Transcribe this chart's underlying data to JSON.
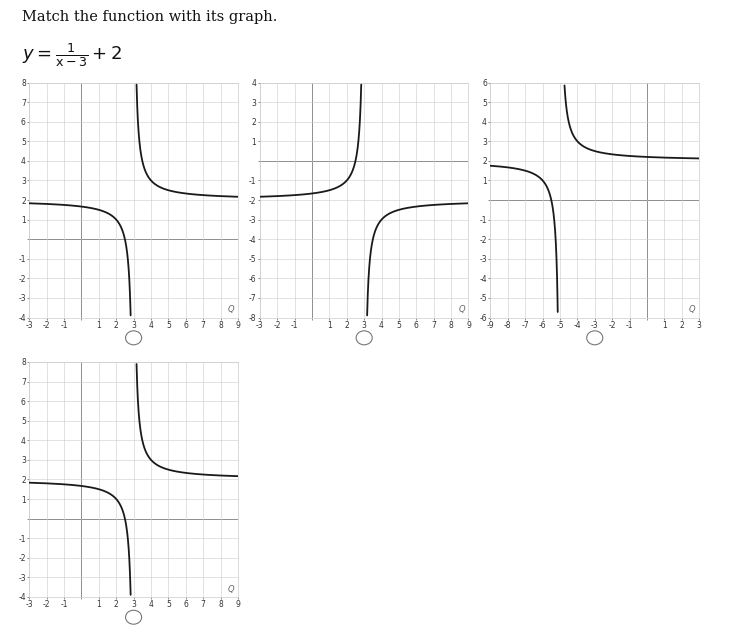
{
  "title": "Match the function with its graph.",
  "background_color": "#ffffff",
  "graphs": [
    {
      "xlim": [
        -3,
        9
      ],
      "ylim": [
        -4,
        8
      ],
      "xtick_min": -3,
      "xtick_max": 9,
      "ytick_min": -4,
      "ytick_max": 8,
      "shift_x": 3,
      "shift_y": 2,
      "sign": 1
    },
    {
      "xlim": [
        -3,
        9
      ],
      "ylim": [
        -8,
        4
      ],
      "xtick_min": -3,
      "xtick_max": 9,
      "ytick_min": -8,
      "ytick_max": 4,
      "shift_x": 3,
      "shift_y": -2,
      "sign": -1
    },
    {
      "xlim": [
        -9,
        3
      ],
      "ylim": [
        -6,
        6
      ],
      "xtick_min": -9,
      "xtick_max": 3,
      "ytick_min": -6,
      "ytick_max": 6,
      "shift_x": -5,
      "shift_y": 2,
      "sign": 1
    },
    {
      "xlim": [
        -3,
        9
      ],
      "ylim": [
        -4,
        8
      ],
      "xtick_min": -3,
      "xtick_max": 9,
      "ytick_min": -4,
      "ytick_max": 8,
      "shift_x": 3,
      "shift_y": 2,
      "sign": 1
    }
  ],
  "curve_color": "#1a1a1a",
  "grid_color": "#cccccc",
  "axis_color": "#444444",
  "tick_label_size": 5.5,
  "line_width": 1.3
}
